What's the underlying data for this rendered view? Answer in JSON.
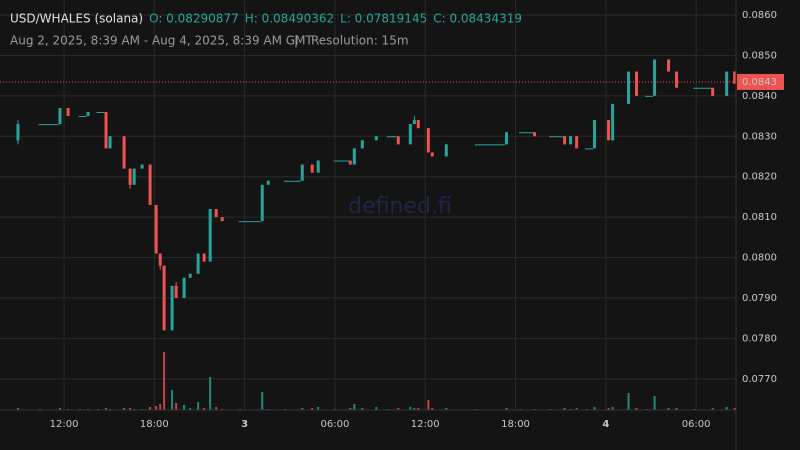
{
  "chart_data": {
    "type": "candlestick",
    "title": "USD/WHALES (solana)",
    "ohlc_labels": [
      "O: 0.08290877",
      "H: 0.08490362",
      "L: 0.07819145",
      "C: 0.08434319"
    ],
    "subtitle": "Aug 2, 2025, 8:39 AM - Aug 4, 2025, 8:39 AM GMT",
    "separator": "|",
    "resolution": "Resolution: 15m",
    "watermark": "defined.fi",
    "last_price": {
      "value": 0.08434319,
      "label": "0.0843"
    },
    "colors": {
      "up": "#26a69a",
      "down": "#ef5350"
    },
    "grid": true,
    "xlim": [
      8.41,
      56.65
    ],
    "xticks": [
      {
        "value": 12,
        "label": "12:00"
      },
      {
        "value": 18,
        "label": "18:00"
      },
      {
        "value": 24,
        "label": "3"
      },
      {
        "value": 30,
        "label": "06:00"
      },
      {
        "value": 36,
        "label": "12:00"
      },
      {
        "value": 42,
        "label": "18:00"
      },
      {
        "value": 48,
        "label": "4"
      },
      {
        "value": 54,
        "label": "06:00"
      }
    ],
    "ylim": [
      0.07623,
      0.08637
    ],
    "yticks": [
      {
        "value": 0.086,
        "label": "0.0860"
      },
      {
        "value": 0.085,
        "label": "0.0850"
      },
      {
        "value": 0.084,
        "label": "0.0840"
      },
      {
        "value": 0.083,
        "label": "0.0830"
      },
      {
        "value": 0.082,
        "label": "0.0820"
      },
      {
        "value": 0.081,
        "label": "0.0810"
      },
      {
        "value": 0.08,
        "label": "0.0800"
      },
      {
        "value": 0.079,
        "label": "0.0790"
      },
      {
        "value": 0.078,
        "label": "0.0780"
      },
      {
        "value": 0.077,
        "label": "0.0770"
      }
    ],
    "x": [
      8.94,
      10.4,
      11.73,
      12.27,
      13.06,
      13.6,
      14.26,
      14.79,
      15.06,
      15.99,
      16.39,
      16.66,
      17.19,
      17.72,
      18.12,
      18.39,
      18.65,
      19.18,
      19.45,
      19.98,
      20.38,
      20.91,
      21.31,
      21.71,
      22.11,
      22.51,
      23.71,
      25.17,
      25.57,
      26.7,
      27.83,
      28.49,
      28.89,
      30.02,
      31.02,
      31.29,
      31.82,
      32.75,
      33.55,
      34.21,
      35.01,
      35.28,
      35.54,
      36.21,
      36.47,
      37.4,
      39.4,
      41.4,
      42.33,
      43.26,
      44.32,
      45.26,
      45.66,
      46.06,
      46.72,
      47.25,
      48.18,
      48.45,
      49.51,
      50.04,
      50.71,
      51.24,
      52.17,
      52.7,
      53.9,
      55.1,
      56.03,
      56.56
    ],
    "open": [
      0.0829,
      0.0833,
      0.0833,
      0.0837,
      0.0835,
      0.0835,
      0.0836,
      0.0836,
      0.0827,
      0.083,
      0.0822,
      0.0818,
      0.0822,
      0.0823,
      0.0813,
      0.0801,
      0.0798,
      0.0782,
      0.0793,
      0.079,
      0.0795,
      0.0796,
      0.0801,
      0.0799,
      0.0812,
      0.081,
      0.0809,
      0.0809,
      0.0818,
      0.0819,
      0.0819,
      0.0823,
      0.0821,
      0.0824,
      0.0824,
      0.0823,
      0.0827,
      0.0829,
      0.083,
      0.083,
      0.0828,
      0.0833,
      0.0834,
      0.0832,
      0.0826,
      0.0825,
      0.0828,
      0.0828,
      0.0831,
      0.0831,
      0.083,
      0.083,
      0.0828,
      0.083,
      0.0827,
      0.0827,
      0.0834,
      0.0829,
      0.0838,
      0.0846,
      0.084,
      0.084,
      0.0849,
      0.0846,
      0.0842,
      0.0842,
      0.084,
      0.0846
    ],
    "high": [
      0.0834,
      0.0833,
      0.0837,
      0.0837,
      0.0835,
      0.0836,
      0.0836,
      0.0836,
      0.083,
      0.083,
      0.0822,
      0.0822,
      0.0823,
      0.0823,
      0.0813,
      0.0801,
      0.0798,
      0.0793,
      0.0794,
      0.0795,
      0.0796,
      0.0801,
      0.0801,
      0.0812,
      0.0812,
      0.081,
      0.0809,
      0.0818,
      0.0819,
      0.0819,
      0.0823,
      0.0823,
      0.0824,
      0.0824,
      0.0824,
      0.0827,
      0.0829,
      0.083,
      0.083,
      0.083,
      0.0833,
      0.0835,
      0.0834,
      0.0832,
      0.0826,
      0.0828,
      0.0828,
      0.0831,
      0.0831,
      0.0831,
      0.083,
      0.083,
      0.083,
      0.083,
      0.0827,
      0.0834,
      0.0834,
      0.0838,
      0.0846,
      0.0846,
      0.084,
      0.0849,
      0.0849,
      0.0846,
      0.0842,
      0.0842,
      0.0846,
      0.0846
    ],
    "low": [
      0.0828,
      0.0833,
      0.0833,
      0.0835,
      0.0835,
      0.0835,
      0.0836,
      0.0827,
      0.0827,
      0.0822,
      0.0817,
      0.0818,
      0.0822,
      0.0813,
      0.0801,
      0.0797,
      0.0782,
      0.0782,
      0.079,
      0.079,
      0.0795,
      0.0796,
      0.0799,
      0.0799,
      0.081,
      0.0809,
      0.0809,
      0.0809,
      0.0818,
      0.0819,
      0.0819,
      0.0821,
      0.0821,
      0.0824,
      0.0823,
      0.0823,
      0.0827,
      0.0829,
      0.083,
      0.0828,
      0.0828,
      0.0833,
      0.0832,
      0.0826,
      0.0825,
      0.0825,
      0.0828,
      0.0828,
      0.0831,
      0.083,
      0.083,
      0.0828,
      0.0828,
      0.0827,
      0.0827,
      0.0827,
      0.0829,
      0.0829,
      0.0838,
      0.084,
      0.084,
      0.084,
      0.0846,
      0.0842,
      0.0842,
      0.084,
      0.084,
      0.0843
    ],
    "close": [
      0.0833,
      0.0833,
      0.0837,
      0.0835,
      0.0835,
      0.0836,
      0.0836,
      0.0827,
      0.083,
      0.0822,
      0.0818,
      0.0822,
      0.0823,
      0.0813,
      0.0801,
      0.0798,
      0.0782,
      0.0793,
      0.079,
      0.0795,
      0.0796,
      0.0801,
      0.0799,
      0.0812,
      0.081,
      0.0809,
      0.0809,
      0.0818,
      0.0819,
      0.0819,
      0.0823,
      0.0821,
      0.0824,
      0.0824,
      0.0823,
      0.0827,
      0.0829,
      0.083,
      0.083,
      0.0828,
      0.0833,
      0.0834,
      0.0832,
      0.0826,
      0.0825,
      0.0828,
      0.0828,
      0.0831,
      0.0831,
      0.083,
      0.083,
      0.0828,
      0.083,
      0.0827,
      0.0827,
      0.0834,
      0.0829,
      0.0838,
      0.0846,
      0.084,
      0.084,
      0.0849,
      0.0846,
      0.0842,
      0.0842,
      0.084,
      0.0846,
      0.0843
    ],
    "volume": [
      2,
      1,
      2,
      1,
      1,
      1,
      1,
      2,
      1,
      2,
      2,
      1,
      1,
      3,
      4,
      6,
      58,
      20,
      7,
      5,
      2,
      8,
      2,
      33,
      3,
      1,
      1,
      18,
      1,
      1,
      2,
      2,
      3,
      1,
      2,
      6,
      2,
      3,
      1,
      2,
      3,
      2,
      2,
      10,
      2,
      2,
      1,
      2,
      1,
      1,
      1,
      2,
      1,
      2,
      1,
      3,
      2,
      3,
      17,
      2,
      1,
      14,
      2,
      2,
      1,
      2,
      3,
      2
    ]
  }
}
